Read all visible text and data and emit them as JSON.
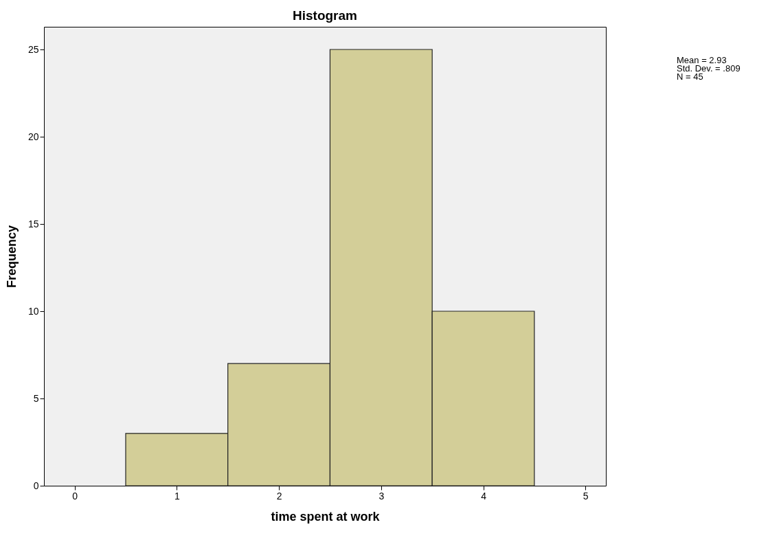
{
  "chart_data": {
    "type": "histogram",
    "title": "Histogram",
    "xlabel": "time spent at work",
    "ylabel": "Frequency",
    "bins": [
      0.5,
      1.5,
      2.5,
      3.5,
      4.5
    ],
    "values": [
      3,
      7,
      25,
      10
    ],
    "color": "#d3ce98",
    "xlim": [
      -0.3,
      5.2
    ],
    "xticks": [
      0,
      1,
      2,
      3,
      4,
      5
    ],
    "ylim": [
      0,
      26.3
    ],
    "yticks": [
      0,
      5,
      10,
      15,
      20,
      25
    ],
    "annotations": [
      "Mean = 2.93",
      "Std. Dev. = .809",
      "N = 45"
    ]
  }
}
